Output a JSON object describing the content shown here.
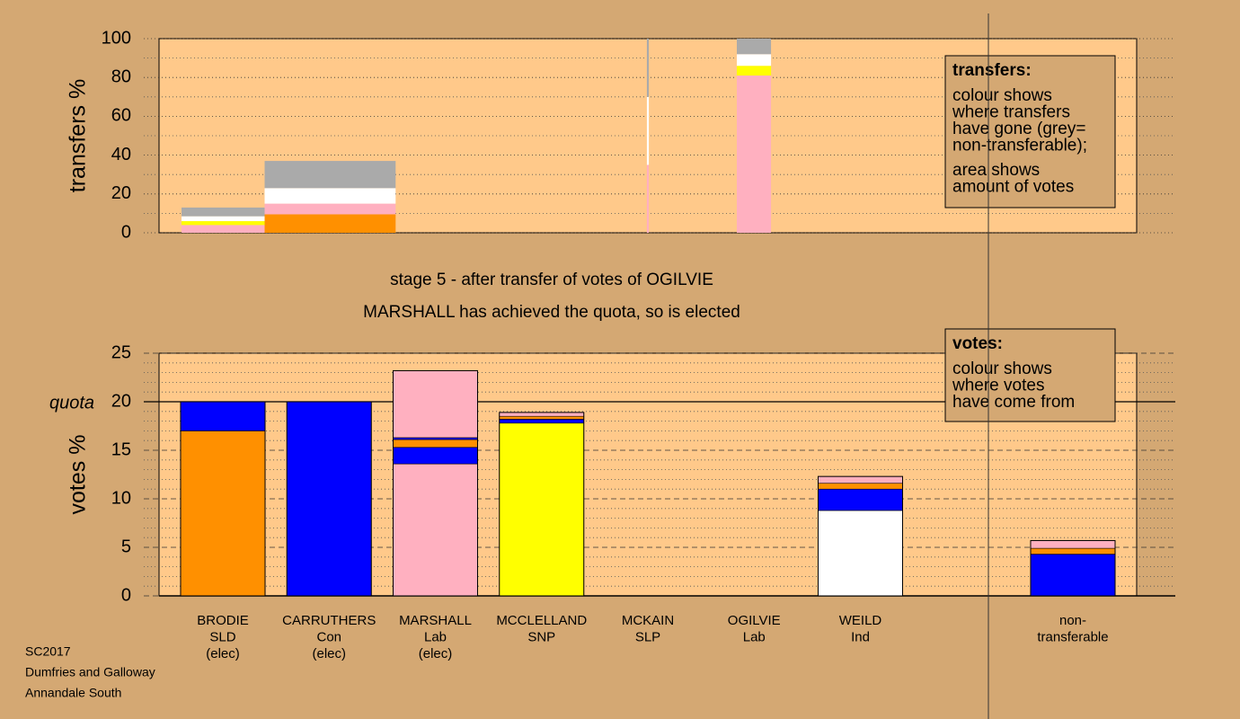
{
  "chart_data": [
    {
      "type": "bar",
      "ylabel": "transfers %",
      "ylim": [
        0,
        100
      ],
      "yticks": [
        0,
        20,
        40,
        60,
        80,
        100
      ],
      "minor_yticks": [
        10,
        30,
        50,
        70,
        90
      ],
      "xlim": [
        0,
        100
      ],
      "bars": [
        {
          "x": 2.3,
          "width": 8.5,
          "segments": [
            {
              "color": "#ffb0c0",
              "value": 4
            },
            {
              "color": "#ffff00",
              "value": 2
            },
            {
              "color": "#ffffff",
              "value": 2.5
            },
            {
              "color": "#aaaaaa",
              "value": 4.5
            }
          ]
        },
        {
          "x": 10.8,
          "width": 13.4,
          "segments": [
            {
              "color": "#ff9000",
              "value": 9.5
            },
            {
              "color": "#ffb0c0",
              "value": 5.5
            },
            {
              "color": "#ffffff",
              "value": 8
            },
            {
              "color": "#aaaaaa",
              "value": 14
            }
          ]
        },
        {
          "x": 49.9,
          "width": 0.2,
          "segments": [
            {
              "color": "#ffb0c0",
              "value": 35
            },
            {
              "color": "#ffffff",
              "value": 35
            },
            {
              "color": "#aaaaaa",
              "value": 30
            }
          ]
        },
        {
          "x": 59.1,
          "width": 3.5,
          "segments": [
            {
              "color": "#ffb0c0",
              "value": 81
            },
            {
              "color": "#ffff00",
              "value": 5
            },
            {
              "color": "#ffffff",
              "value": 6
            },
            {
              "color": "#aaaaaa",
              "value": 8
            }
          ]
        }
      ],
      "legend": {
        "title": "transfers:",
        "paragraphs": [
          [
            "colour shows",
            "where transfers",
            "have gone (grey=",
            "non-transferable);"
          ],
          [
            "area shows",
            "amount of votes"
          ]
        ]
      }
    },
    {
      "type": "bar",
      "title": [
        "stage 5 - after transfer of votes of OGILVIE",
        "MARSHALL has achieved the quota, so is elected"
      ],
      "ylabel": "votes %",
      "ylim": [
        0,
        25
      ],
      "yticks": [
        0,
        5,
        10,
        15,
        20,
        25
      ],
      "minor_yticks": [
        1,
        2,
        3,
        4,
        6,
        7,
        8,
        9,
        11,
        12,
        13,
        14,
        16,
        17,
        18,
        19,
        21,
        22,
        23,
        24
      ],
      "quota": {
        "label": "quota",
        "value": 20
      },
      "categories": [
        [
          "BRODIE",
          "SLD",
          "(elec)"
        ],
        [
          "CARRUTHERS",
          "Con",
          "(elec)"
        ],
        [
          "MARSHALL",
          "Lab",
          "(elec)"
        ],
        [
          "MCCLELLAND",
          "SNP"
        ],
        [
          "MCKAIN",
          "SLP"
        ],
        [
          "OGILVIE",
          "Lab"
        ],
        [
          "WEILD",
          "Ind"
        ],
        null,
        [
          "non-",
          "transferable"
        ]
      ],
      "bars": [
        {
          "segments": [
            {
              "color": "#ff9000",
              "value": 17
            },
            {
              "color": "#0000ff",
              "value": 3
            }
          ]
        },
        {
          "segments": [
            {
              "color": "#0000ff",
              "value": 20
            }
          ]
        },
        {
          "segments": [
            {
              "color": "#ffb0c0",
              "value": 13.6
            },
            {
              "color": "#0000ff",
              "value": 1.7
            },
            {
              "color": "#ff9000",
              "value": 0.8
            },
            {
              "color": "#0000ff",
              "value": 0.2
            },
            {
              "color": "#ffb0c0",
              "value": 6.9
            }
          ]
        },
        {
          "segments": [
            {
              "color": "#ffff00",
              "value": 17.8
            },
            {
              "color": "#0000ff",
              "value": 0.4
            },
            {
              "color": "#ff9000",
              "value": 0.3
            },
            {
              "color": "#ffb0c0",
              "value": 0.4
            }
          ]
        },
        {
          "segments": []
        },
        {
          "segments": []
        },
        {
          "segments": [
            {
              "color": "#ffffff",
              "value": 8.8
            },
            {
              "color": "#0000ff",
              "value": 2.2
            },
            {
              "color": "#ff9000",
              "value": 0.6
            },
            {
              "color": "#ffb0c0",
              "value": 0.7
            }
          ]
        },
        null,
        {
          "segments": [
            {
              "color": "#0000ff",
              "value": 4.3
            },
            {
              "color": "#ff9000",
              "value": 0.6
            },
            {
              "color": "#ffb0c0",
              "value": 0.8
            }
          ]
        }
      ],
      "legend": {
        "title": "votes:",
        "paragraphs": [
          [
            "colour shows",
            "where votes",
            "have come from"
          ]
        ]
      }
    }
  ],
  "footer": [
    "SC2017",
    "Dumfries and Galloway",
    "Annandale South"
  ]
}
